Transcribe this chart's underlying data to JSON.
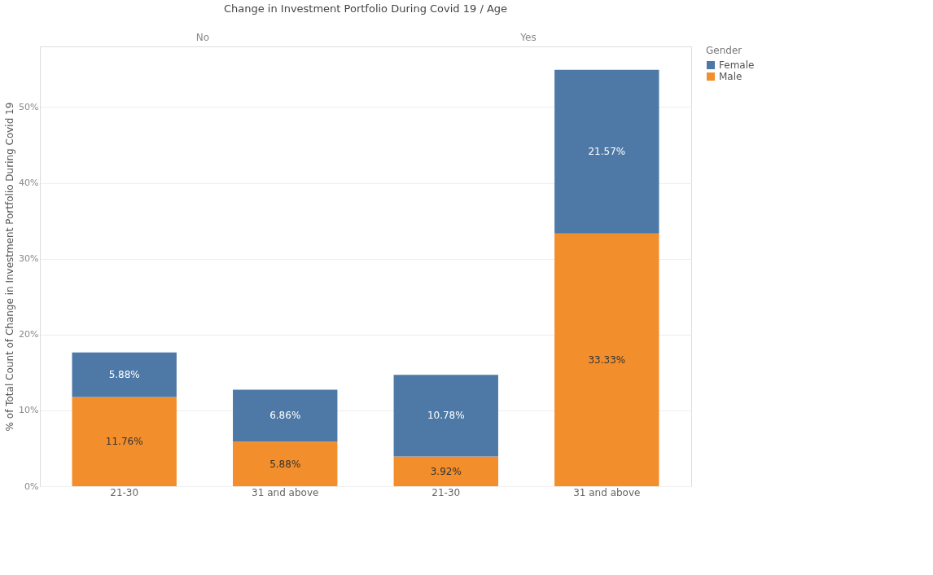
{
  "chart_data": {
    "type": "bar",
    "title": "Change in Investment Portfolio During Covid 19  /  Age",
    "ylabel": "% of Total Count of Change in Investment Portfolio During Covid 19",
    "legend_title": "Gender",
    "annotations": [
      "No",
      "Yes"
    ],
    "categories": [
      "21-30",
      "31 and above",
      "21-30",
      "31 and above"
    ],
    "stacked": true,
    "ylim": [
      0,
      58
    ],
    "yticks": [
      {
        "value": 0,
        "label": "0%"
      },
      {
        "value": 10,
        "label": "10%"
      },
      {
        "value": 20,
        "label": "20%"
      },
      {
        "value": 30,
        "label": "30%"
      },
      {
        "value": 40,
        "label": "40%"
      },
      {
        "value": 50,
        "label": "50%"
      }
    ],
    "grid": "y",
    "legend": "right",
    "series": [
      {
        "name": "Male",
        "color": "#f28e2b",
        "values": [
          11.76,
          5.88,
          3.92,
          33.33
        ],
        "value_labels": [
          "11.76%",
          "5.88%",
          "3.92%",
          "33.33%"
        ]
      },
      {
        "name": "Female",
        "color": "#4e79a7",
        "values": [
          5.88,
          6.86,
          10.78,
          21.57
        ],
        "value_labels": [
          "5.88%",
          "6.86%",
          "10.78%",
          "21.57%"
        ]
      }
    ]
  }
}
